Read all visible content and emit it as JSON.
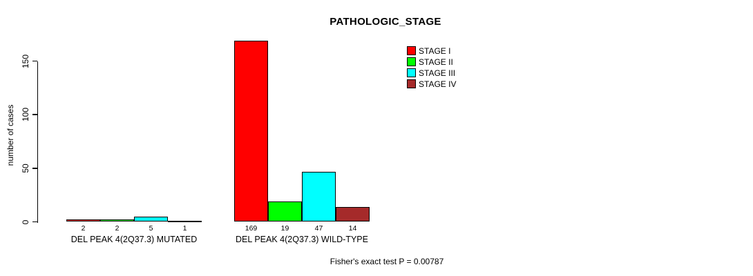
{
  "chart_data": {
    "type": "bar",
    "title": "PATHOLOGIC_STAGE",
    "ylabel": "number of cases",
    "xlabel": "",
    "categories": [
      "DEL PEAK 4(2Q37.3) MUTATED",
      "DEL PEAK 4(2Q37.3) WILD-TYPE"
    ],
    "series": [
      {
        "name": "STAGE I",
        "color": "#FF0000",
        "values": [
          2,
          169
        ]
      },
      {
        "name": "STAGE II",
        "color": "#00FF00",
        "values": [
          2,
          19
        ]
      },
      {
        "name": "STAGE III",
        "color": "#00FFFF",
        "values": [
          5,
          47
        ]
      },
      {
        "name": "STAGE IV",
        "color": "#A52A2A",
        "values": [
          1,
          14
        ]
      }
    ],
    "yticks": [
      0,
      50,
      100,
      150
    ],
    "ylim": [
      0,
      169
    ],
    "grid": false,
    "bar_value_labels_shown": true,
    "legend_position": "top-right",
    "legend_labels": [
      "STAGE I",
      "STAGE II",
      "STAGE III",
      "STAGE IV"
    ],
    "annotation": "Fisher's exact test P = 0.00787",
    "background_color": "#FFFFFF",
    "axis_color": "#000000"
  }
}
